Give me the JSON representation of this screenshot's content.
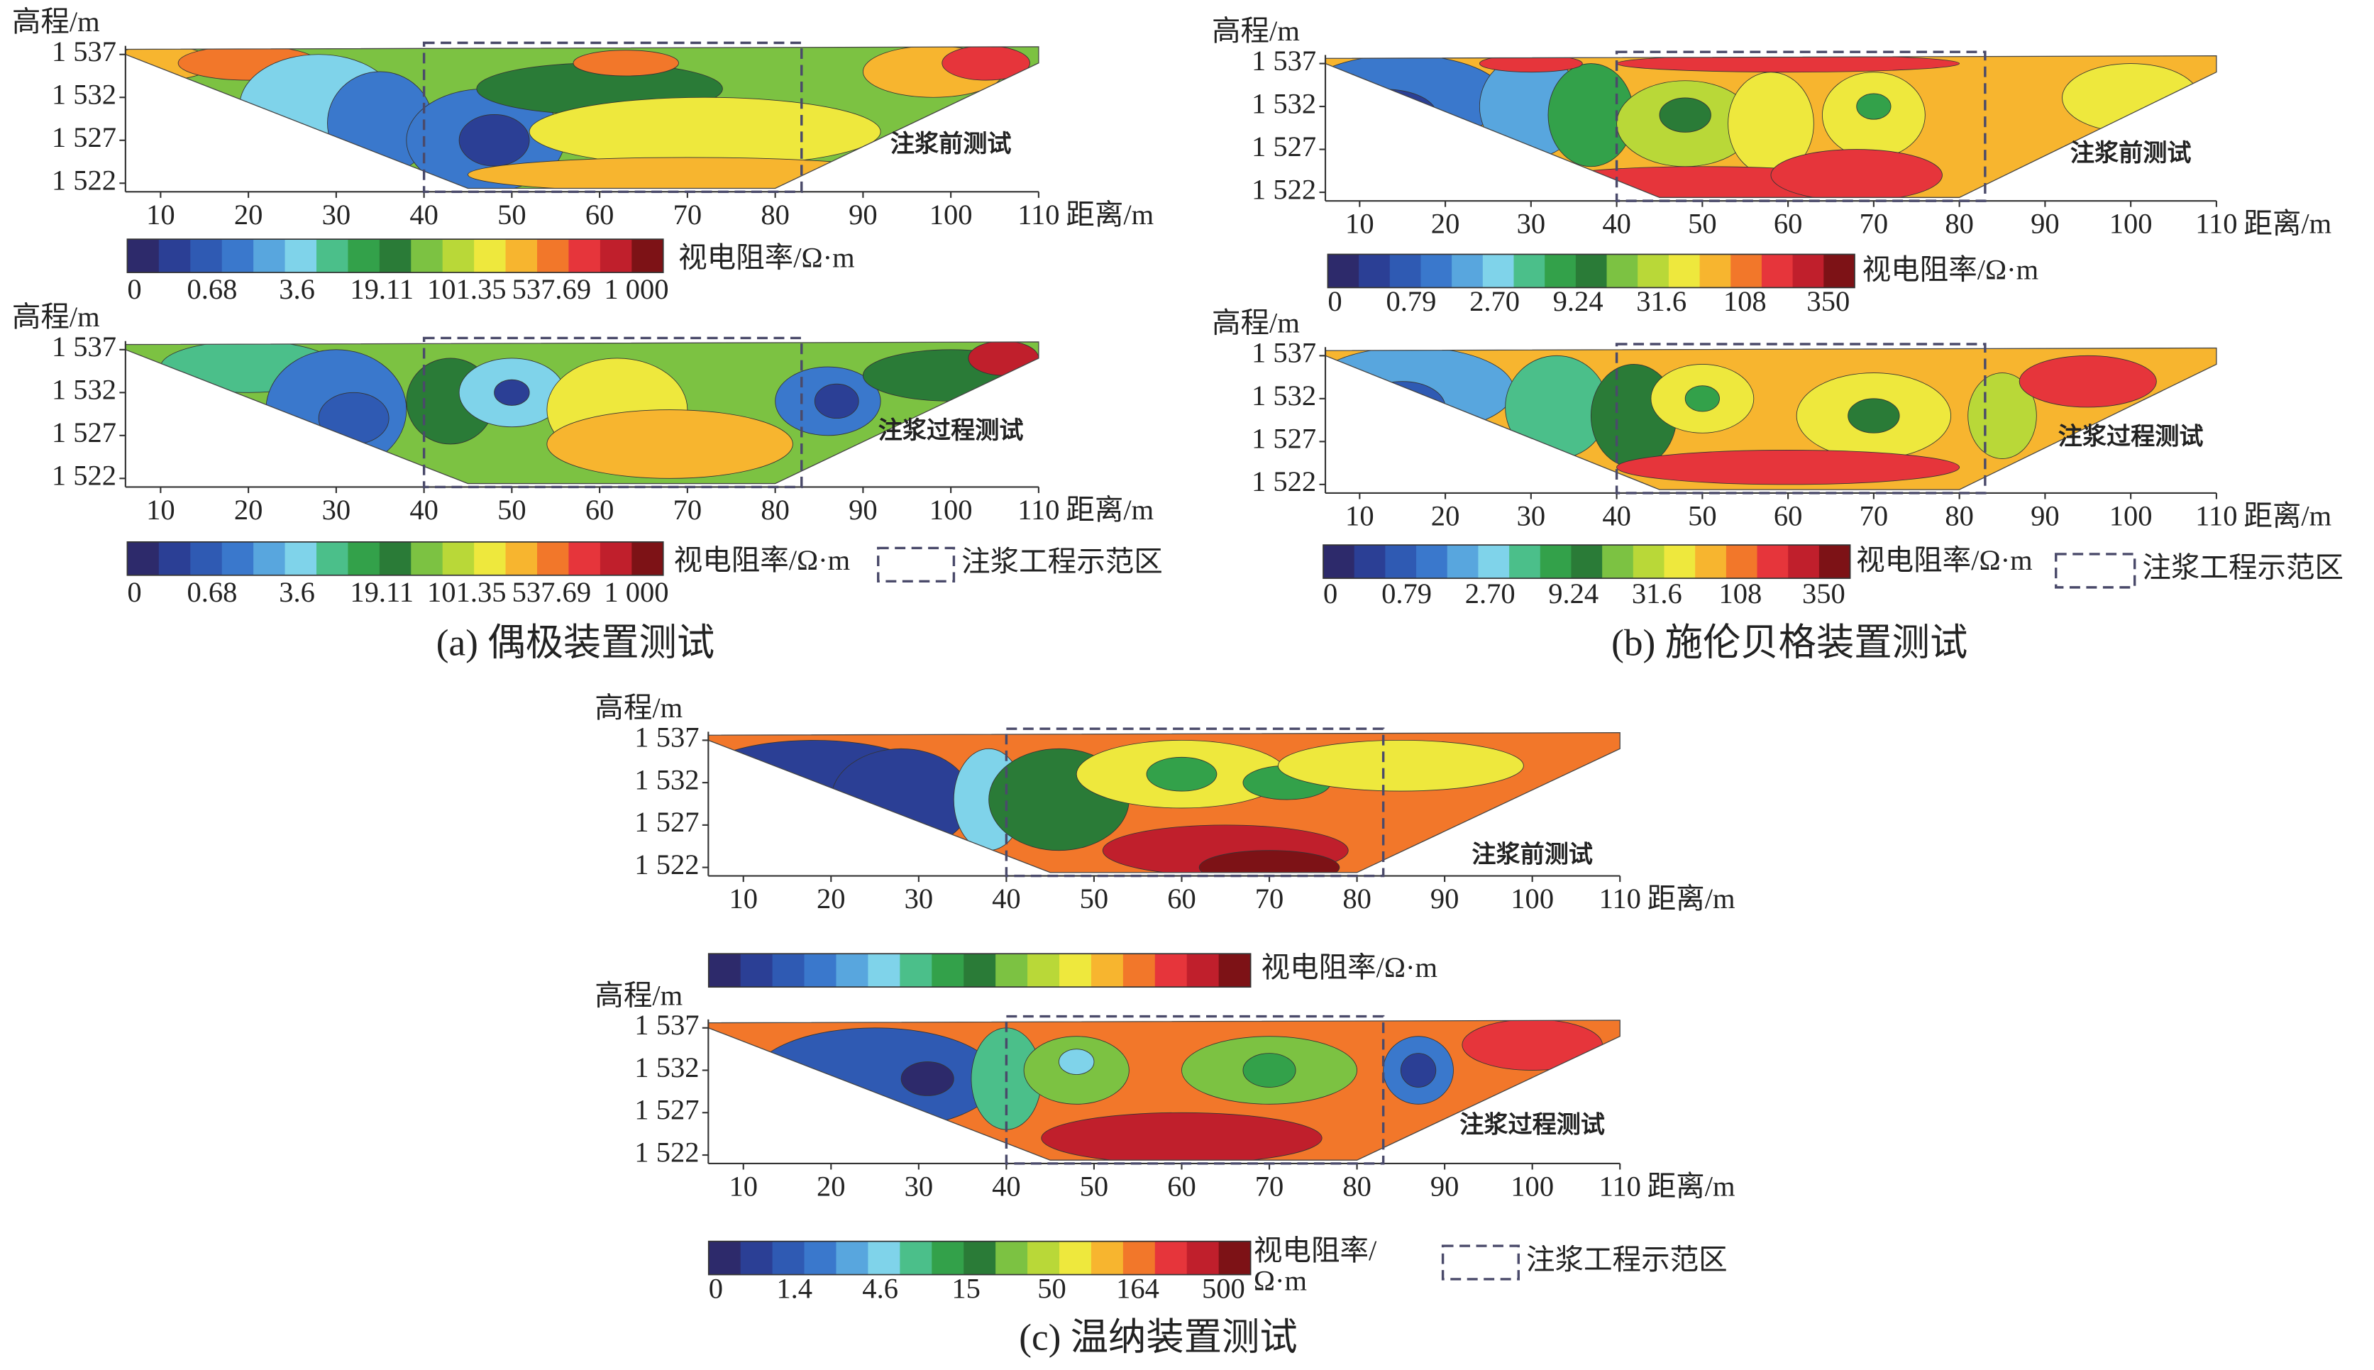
{
  "captions": [
    "(a) 偶极装置测试",
    "(b) 施伦贝格装置测试",
    "(c) 温纳装置测试"
  ],
  "chart_data": [
    {
      "type": "contour",
      "ylabel": "高程/m",
      "xlabel": "距离/m",
      "annotation": "注浆前测试",
      "xlim": [
        6,
        110
      ],
      "ylim": [
        1521,
        1538
      ],
      "xticks": [
        10,
        20,
        30,
        40,
        50,
        60,
        70,
        80,
        90,
        100,
        110
      ],
      "yticks": [
        {
          "value": 1522,
          "label": "1 522"
        },
        {
          "value": 1527,
          "label": "1 527"
        },
        {
          "value": 1532,
          "label": "1 532"
        },
        {
          "value": 1537,
          "label": "1 537"
        }
      ],
      "region_x": [
        40,
        83
      ],
      "colorbar": {
        "label": "视电阻率/Ω·m",
        "colors": [
          "#2d2a6b",
          "#2b3f95",
          "#2f5ab3",
          "#3a78cc",
          "#58a6de",
          "#7fd3ea",
          "#4bbf8a",
          "#33a14a",
          "#2a7b37",
          "#7cc242",
          "#b9d838",
          "#eee83d",
          "#f7b52f",
          "#f2772a",
          "#e6353b",
          "#c01f2c",
          "#7d1216"
        ],
        "ticks": [
          0,
          0.68,
          3.6,
          19.11,
          101.35,
          537.69,
          {
            "value": 1000,
            "label": "1 000"
          }
        ]
      }
    },
    {
      "type": "contour",
      "ylabel": "高程/m",
      "xlabel": "距离/m",
      "annotation": "注浆过程测试",
      "xlim": [
        6,
        110
      ],
      "ylim": [
        1521,
        1538
      ],
      "xticks": [
        10,
        20,
        30,
        40,
        50,
        60,
        70,
        80,
        90,
        100,
        110
      ],
      "yticks": [
        {
          "value": 1522,
          "label": "1 522"
        },
        {
          "value": 1527,
          "label": "1 527"
        },
        {
          "value": 1532,
          "label": "1 532"
        },
        {
          "value": 1537,
          "label": "1 537"
        }
      ],
      "region_x": [
        40,
        83
      ],
      "region_label": "注浆工程示范区",
      "colorbar": {
        "label": "视电阻率/Ω·m",
        "colors": [
          "#2d2a6b",
          "#2b3f95",
          "#2f5ab3",
          "#3a78cc",
          "#58a6de",
          "#7fd3ea",
          "#4bbf8a",
          "#33a14a",
          "#2a7b37",
          "#7cc242",
          "#b9d838",
          "#eee83d",
          "#f7b52f",
          "#f2772a",
          "#e6353b",
          "#c01f2c",
          "#7d1216"
        ],
        "ticks": [
          0,
          0.68,
          3.6,
          19.11,
          101.35,
          537.69,
          {
            "value": 1000,
            "label": "1 000"
          }
        ]
      }
    },
    {
      "type": "contour",
      "ylabel": "高程/m",
      "xlabel": "距离/m",
      "annotation": "注浆前测试",
      "xlim": [
        6,
        110
      ],
      "ylim": [
        1521,
        1538
      ],
      "xticks": [
        10,
        20,
        30,
        40,
        50,
        60,
        70,
        80,
        90,
        100,
        110
      ],
      "yticks": [
        {
          "value": 1522,
          "label": "1 522"
        },
        {
          "value": 1527,
          "label": "1 527"
        },
        {
          "value": 1532,
          "label": "1 532"
        },
        {
          "value": 1537,
          "label": "1 537"
        }
      ],
      "region_x": [
        40,
        83
      ],
      "colorbar": {
        "label": "视电阻率/Ω·m",
        "colors": [
          "#2d2a6b",
          "#2b3f95",
          "#2f5ab3",
          "#3a78cc",
          "#58a6de",
          "#7fd3ea",
          "#4bbf8a",
          "#33a14a",
          "#2a7b37",
          "#7cc242",
          "#b9d838",
          "#eee83d",
          "#f7b52f",
          "#f2772a",
          "#e6353b",
          "#c01f2c",
          "#7d1216"
        ],
        "ticks": [
          0,
          0.79,
          "2.70",
          9.24,
          31.6,
          108,
          350
        ]
      }
    },
    {
      "type": "contour",
      "ylabel": "高程/m",
      "xlabel": "距离/m",
      "annotation": "注浆过程测试",
      "xlim": [
        6,
        110
      ],
      "ylim": [
        1521,
        1538
      ],
      "xticks": [
        10,
        20,
        30,
        40,
        50,
        60,
        70,
        80,
        90,
        100,
        110
      ],
      "yticks": [
        {
          "value": 1522,
          "label": "1 522"
        },
        {
          "value": 1527,
          "label": "1 527"
        },
        {
          "value": 1532,
          "label": "1 532"
        },
        {
          "value": 1537,
          "label": "1 537"
        }
      ],
      "region_x": [
        40,
        83
      ],
      "region_label": "注浆工程示范区",
      "colorbar": {
        "label": "视电阻率/Ω·m",
        "colors": [
          "#2d2a6b",
          "#2b3f95",
          "#2f5ab3",
          "#3a78cc",
          "#58a6de",
          "#7fd3ea",
          "#4bbf8a",
          "#33a14a",
          "#2a7b37",
          "#7cc242",
          "#b9d838",
          "#eee83d",
          "#f7b52f",
          "#f2772a",
          "#e6353b",
          "#c01f2c",
          "#7d1216"
        ],
        "ticks": [
          0,
          0.79,
          "2.70",
          9.24,
          31.6,
          108,
          350
        ]
      }
    },
    {
      "type": "contour",
      "ylabel": "高程/m",
      "xlabel": "距离/m",
      "annotation": "注浆前测试",
      "xlim": [
        6,
        110
      ],
      "ylim": [
        1521,
        1538
      ],
      "xticks": [
        10,
        20,
        30,
        40,
        50,
        60,
        70,
        80,
        90,
        100,
        110
      ],
      "yticks": [
        {
          "value": 1522,
          "label": "1 522"
        },
        {
          "value": 1527,
          "label": "1 527"
        },
        {
          "value": 1532,
          "label": "1 532"
        },
        {
          "value": 1537,
          "label": "1 537"
        }
      ],
      "region_x": [
        40,
        83
      ],
      "colorbar": {
        "label": "视电阻率/Ω·m",
        "colors": [
          "#2d2a6b",
          "#2b3f95",
          "#2f5ab3",
          "#3a78cc",
          "#58a6de",
          "#7fd3ea",
          "#4bbf8a",
          "#33a14a",
          "#2a7b37",
          "#7cc242",
          "#b9d838",
          "#eee83d",
          "#f7b52f",
          "#f2772a",
          "#e6353b",
          "#c01f2c",
          "#7d1216"
        ],
        "ticks": []
      }
    },
    {
      "type": "contour",
      "ylabel": "高程/m",
      "xlabel": "距离/m",
      "annotation": "注浆过程测试",
      "xlim": [
        6,
        110
      ],
      "ylim": [
        1521,
        1538
      ],
      "xticks": [
        10,
        20,
        30,
        40,
        50,
        60,
        70,
        80,
        90,
        100,
        110
      ],
      "yticks": [
        {
          "value": 1522,
          "label": "1 522"
        },
        {
          "value": 1527,
          "label": "1 527"
        },
        {
          "value": 1532,
          "label": "1 532"
        },
        {
          "value": 1537,
          "label": "1 537"
        }
      ],
      "region_x": [
        40,
        83
      ],
      "region_label": "注浆工程示范区",
      "colorbar": {
        "label_lines": [
          "视电阻率/",
          "Ω·m"
        ],
        "colors": [
          "#2d2a6b",
          "#2b3f95",
          "#2f5ab3",
          "#3a78cc",
          "#58a6de",
          "#7fd3ea",
          "#4bbf8a",
          "#33a14a",
          "#2a7b37",
          "#7cc242",
          "#b9d838",
          "#eee83d",
          "#f7b52f",
          "#f2772a",
          "#e6353b",
          "#c01f2c",
          "#7d1216"
        ],
        "ticks": [
          0,
          1.4,
          4.6,
          15,
          50,
          164,
          500
        ]
      }
    }
  ]
}
